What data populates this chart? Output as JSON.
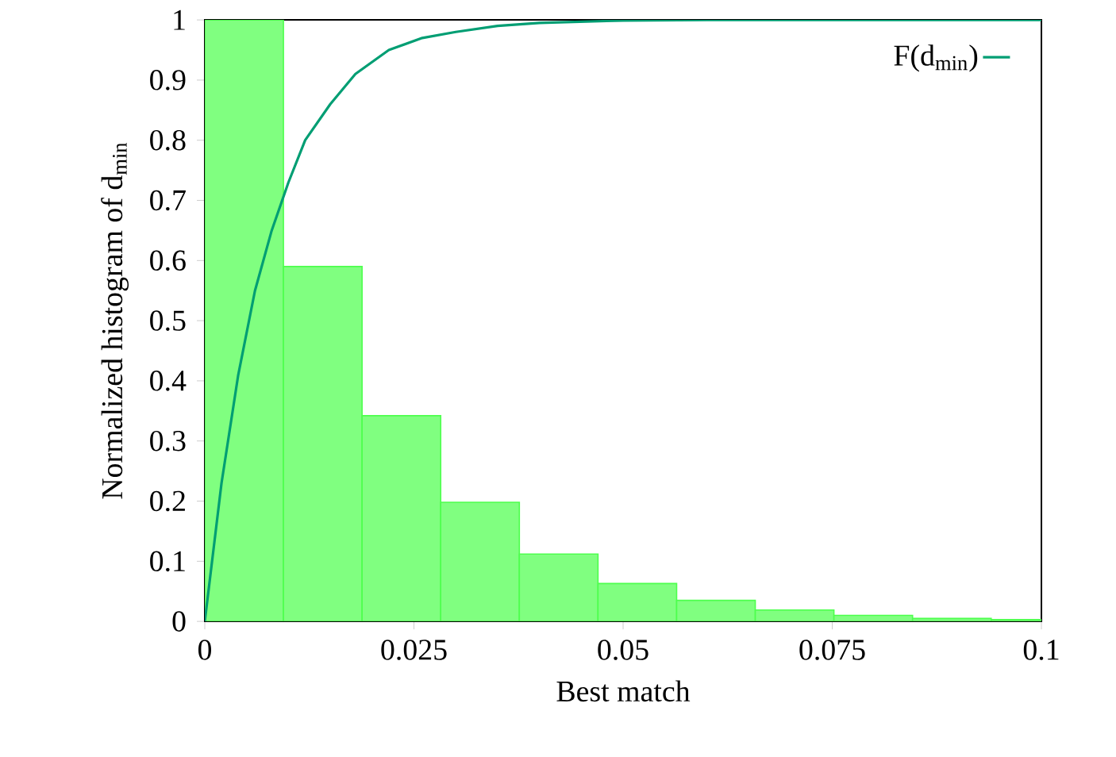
{
  "chart_data": {
    "type": "histogram",
    "xlabel": "Best match",
    "ylabel": "Normalized histogram of d$_{min}$",
    "xlim": [
      0,
      0.1
    ],
    "ylim": [
      0,
      1
    ],
    "xticks": [
      0,
      0.025,
      0.05,
      0.075,
      0.1
    ],
    "yticks": [
      0,
      0.1,
      0.2,
      0.3,
      0.4,
      0.5,
      0.6,
      0.7,
      0.8,
      0.9,
      1
    ],
    "legend": "top right",
    "grid": false,
    "series": [
      {
        "color": "#80ff80",
        "bins": [
          0,
          0.0094,
          0.0188,
          0.0282,
          0.0376,
          0.047,
          0.0564,
          0.0658,
          0.0752,
          0.0846,
          0.094,
          0.1
        ],
        "values": [
          1.0,
          0.59,
          0.342,
          0.198,
          0.112,
          0.063,
          0.035,
          0.019,
          0.01,
          0.005,
          0.003
        ]
      },
      {
        "type": "line",
        "name": "F(d$_{min}$)",
        "color": "#009e73",
        "x": [
          0,
          0.002,
          0.004,
          0.006,
          0.008,
          0.01,
          0.012,
          0.015,
          0.018,
          0.022,
          0.026,
          0.03,
          0.035,
          0.04,
          0.05,
          0.06,
          0.08,
          0.1
        ],
        "values": [
          0,
          0.23,
          0.41,
          0.55,
          0.65,
          0.73,
          0.8,
          0.86,
          0.91,
          0.95,
          0.97,
          0.98,
          0.99,
          0.995,
          0.999,
          1,
          1,
          1
        ]
      }
    ]
  }
}
